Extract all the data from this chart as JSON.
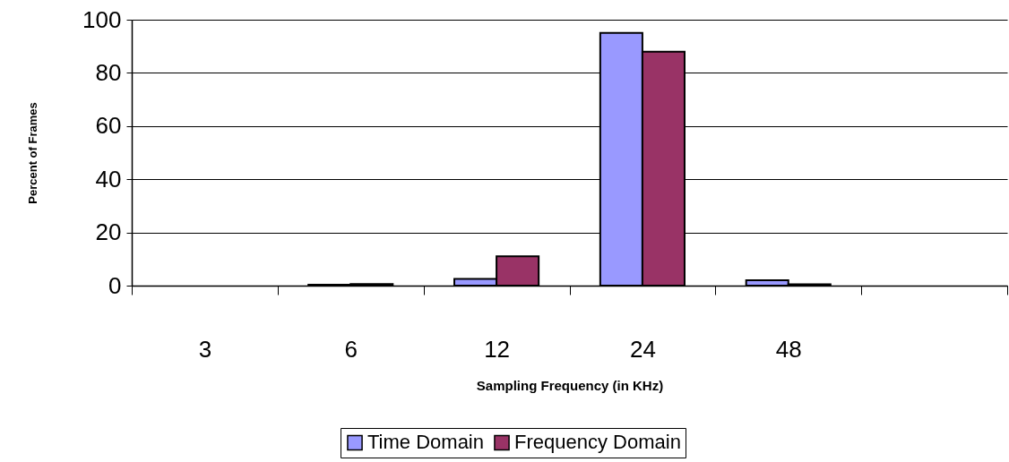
{
  "chart_data": {
    "type": "bar",
    "xlabel": "Sampling Frequency (in KHz)",
    "ylabel": "Percent of Frames",
    "categories": [
      "3",
      "6",
      "12",
      "24",
      "48",
      null
    ],
    "series": [
      {
        "name": "Time Domain",
        "color": "#9999ff",
        "values": [
          null,
          0.3,
          2.5,
          95,
          2,
          null
        ]
      },
      {
        "name": "Frequency Domain",
        "color": "#993366",
        "values": [
          null,
          0.6,
          11,
          88,
          0.5,
          null
        ]
      }
    ],
    "ylim": [
      0,
      100
    ],
    "yticks": [
      0,
      20,
      40,
      60,
      80,
      100
    ],
    "grid": "y",
    "legend": "bottom"
  }
}
